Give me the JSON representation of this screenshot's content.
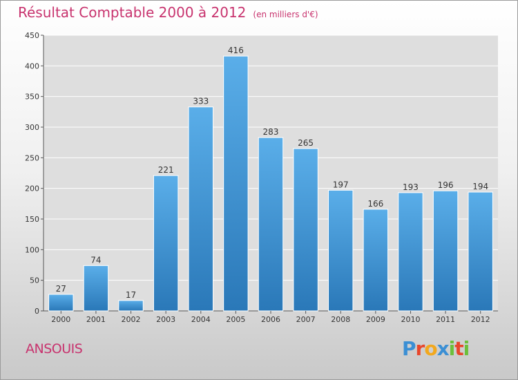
{
  "header": {
    "title": "Résultat Comptable 2000 à 2012",
    "unit": "(en milliers d'€)"
  },
  "footer": {
    "place": "ANSOUIS",
    "logo_letters": [
      "P",
      "r",
      "o",
      "x",
      "i",
      "t",
      "i"
    ]
  },
  "colors": {
    "title": "#c8336e",
    "bar_top": "#5aaee9",
    "bar_bottom": "#2a78b8",
    "grid": "#ffffff"
  },
  "chart_data": {
    "type": "bar",
    "title": "Résultat Comptable 2000 à 2012",
    "xlabel": "",
    "ylabel": "",
    "ylim": [
      0,
      450
    ],
    "yticks": [
      0,
      50,
      100,
      150,
      200,
      250,
      300,
      350,
      400,
      450
    ],
    "grid": true,
    "categories": [
      "2000",
      "2001",
      "2002",
      "2003",
      "2004",
      "2005",
      "2006",
      "2007",
      "2008",
      "2009",
      "2010",
      "2011",
      "2012"
    ],
    "values": [
      27,
      74,
      17,
      221,
      333,
      416,
      283,
      265,
      197,
      166,
      193,
      196,
      194
    ]
  }
}
